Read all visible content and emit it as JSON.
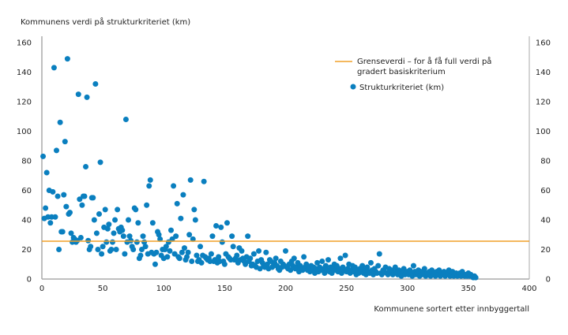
{
  "chart_data": {
    "type": "scatter",
    "title": "",
    "ylabel": "Kommunens verdi på strukturkriteriet (km)",
    "xlabel": "Kommunene sortert etter innbyggertall",
    "xlim": [
      0,
      400
    ],
    "ylim": [
      0,
      160
    ],
    "xticks": [
      0,
      50,
      100,
      150,
      200,
      250,
      300,
      350,
      400
    ],
    "yticks": [
      0,
      20,
      40,
      60,
      80,
      100,
      120,
      140,
      160
    ],
    "grid": false,
    "legend_placement": "top-right",
    "colors": {
      "points": "#0a7fbf",
      "threshold": "#f0a028",
      "axis": "#aaaaaa"
    },
    "threshold": {
      "name": "Grenseverdi – for å få full verdi på gradert basiskriterium",
      "value": 25.6
    },
    "series": [
      {
        "name": "Strukturkriteriet (km)",
        "x_start": 1,
        "y": [
          83,
          41,
          48,
          72,
          42,
          60,
          38,
          42,
          59,
          143,
          42,
          87,
          56,
          20,
          106,
          32,
          32,
          57,
          93,
          49,
          149,
          44,
          45,
          31,
          25,
          28,
          27,
          25,
          26,
          125,
          54,
          28,
          50,
          56,
          56,
          76,
          123,
          26,
          20,
          22,
          55,
          55,
          40,
          132,
          31,
          20,
          44,
          79,
          17,
          22,
          35,
          47,
          25,
          34,
          37,
          19,
          20,
          25,
          31,
          40,
          20,
          47,
          34,
          32,
          35,
          33,
          29,
          17,
          108,
          25,
          40,
          29,
          26,
          22,
          20,
          48,
          47,
          25,
          38,
          14,
          16,
          20,
          29,
          25,
          22,
          50,
          17,
          63,
          67,
          18,
          38,
          17,
          10,
          18,
          32,
          30,
          27,
          16,
          20,
          14,
          20,
          22,
          15,
          25,
          19,
          33,
          27,
          63,
          17,
          29,
          51,
          15,
          14,
          41,
          18,
          57,
          21,
          13,
          15,
          18,
          30,
          67,
          12,
          27,
          47,
          40,
          16,
          12,
          13,
          22,
          11,
          16,
          66,
          15,
          14,
          13,
          14,
          12,
          17,
          29,
          12,
          13,
          36,
          11,
          15,
          12,
          35,
          25,
          12,
          10,
          17,
          38,
          15,
          14,
          13,
          29,
          22,
          13,
          14,
          16,
          11,
          21,
          13,
          19,
          14,
          12,
          10,
          15,
          29,
          12,
          14,
          9,
          10,
          17,
          9,
          8,
          12,
          19,
          7,
          13,
          11,
          9,
          8,
          18,
          10,
          7,
          13,
          12,
          8,
          9,
          11,
          14,
          9,
          7,
          6,
          12,
          8,
          10,
          9,
          19,
          8,
          7,
          10,
          6,
          12,
          9,
          14,
          7,
          8,
          11,
          5,
          9,
          7,
          6,
          15,
          8,
          10,
          6,
          7,
          5,
          9,
          6,
          8,
          4,
          7,
          11,
          5,
          8,
          6,
          12,
          7,
          4,
          9,
          6,
          13,
          5,
          8,
          4,
          7,
          10,
          6,
          9,
          5,
          7,
          14,
          4,
          8,
          6,
          16,
          5,
          7,
          10,
          4,
          6,
          9,
          5,
          8,
          3,
          6,
          4,
          7,
          5,
          9,
          4,
          6,
          3,
          8,
          5,
          4,
          11,
          6,
          3,
          7,
          5,
          4,
          9,
          17,
          4,
          3,
          6,
          5,
          8,
          4,
          3,
          7,
          5,
          6,
          3,
          4,
          8,
          5,
          3,
          6,
          4,
          2,
          5,
          7,
          3,
          4,
          5,
          3,
          6,
          4,
          2,
          9,
          5,
          3,
          4,
          6,
          2,
          5,
          3,
          4,
          7,
          2,
          4,
          3,
          5,
          2,
          6,
          3,
          4,
          2,
          5,
          3,
          6,
          2,
          4,
          3,
          5,
          2,
          3,
          4,
          6,
          2,
          3,
          5,
          2,
          3,
          4,
          2,
          3,
          4,
          2,
          5,
          3,
          2,
          3,
          2,
          4,
          2,
          3,
          2,
          1,
          2,
          1
        ]
      }
    ]
  }
}
